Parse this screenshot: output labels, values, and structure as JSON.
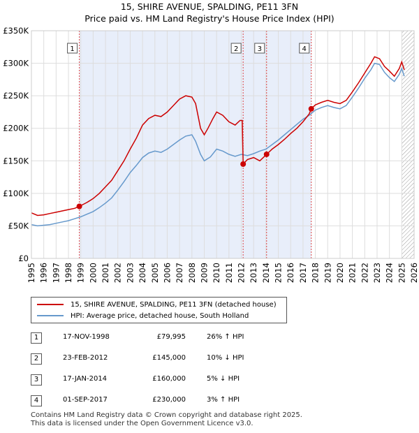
{
  "header": {
    "title": "15, SHIRE AVENUE, SPALDING, PE11 3FN",
    "subtitle": "Price paid vs. HM Land Registry's House Price Index (HPI)"
  },
  "chart_data": {
    "type": "line",
    "ylim": [
      0,
      350000
    ],
    "xlim": [
      1995,
      2026
    ],
    "y_ticks": [
      {
        "value": 0,
        "label": "£0"
      },
      {
        "value": 50000,
        "label": "£50K"
      },
      {
        "value": 100000,
        "label": "£100K"
      },
      {
        "value": 150000,
        "label": "£150K"
      },
      {
        "value": 200000,
        "label": "£200K"
      },
      {
        "value": 250000,
        "label": "£250K"
      },
      {
        "value": 300000,
        "label": "£300K"
      },
      {
        "value": 350000,
        "label": "£350K"
      }
    ],
    "x_ticks": [
      "1995",
      "1996",
      "1997",
      "1998",
      "1999",
      "2000",
      "2001",
      "2002",
      "2003",
      "2004",
      "2005",
      "2006",
      "2007",
      "2008",
      "2009",
      "2010",
      "2011",
      "2012",
      "2013",
      "2014",
      "2015",
      "2016",
      "2017",
      "2018",
      "2019",
      "2020",
      "2021",
      "2022",
      "2023",
      "2024",
      "2025",
      "2026"
    ],
    "grid": true,
    "shaded_spans": [
      [
        1998.88,
        2017.67
      ]
    ],
    "hatched_from": 2025.0,
    "series": [
      {
        "name": "15, SHIRE AVENUE, SPALDING, PE11 3FN (detached house)",
        "color": "#cc0000",
        "points": [
          [
            1995.0,
            70000
          ],
          [
            1995.5,
            66000
          ],
          [
            1996.0,
            67000
          ],
          [
            1996.5,
            69000
          ],
          [
            1997.0,
            71000
          ],
          [
            1997.5,
            73000
          ],
          [
            1998.0,
            75000
          ],
          [
            1998.5,
            77000
          ],
          [
            1998.88,
            79995
          ],
          [
            1999.5,
            86000
          ],
          [
            2000.0,
            92000
          ],
          [
            2000.5,
            100000
          ],
          [
            2001.0,
            110000
          ],
          [
            2001.5,
            120000
          ],
          [
            2002.0,
            135000
          ],
          [
            2002.5,
            150000
          ],
          [
            2003.0,
            168000
          ],
          [
            2003.5,
            185000
          ],
          [
            2004.0,
            205000
          ],
          [
            2004.5,
            215000
          ],
          [
            2005.0,
            220000
          ],
          [
            2005.5,
            218000
          ],
          [
            2006.0,
            225000
          ],
          [
            2006.5,
            235000
          ],
          [
            2007.0,
            245000
          ],
          [
            2007.5,
            250000
          ],
          [
            2008.0,
            248000
          ],
          [
            2008.3,
            238000
          ],
          [
            2008.7,
            200000
          ],
          [
            2009.0,
            190000
          ],
          [
            2009.3,
            200000
          ],
          [
            2009.7,
            215000
          ],
          [
            2010.0,
            225000
          ],
          [
            2010.5,
            220000
          ],
          [
            2011.0,
            210000
          ],
          [
            2011.5,
            205000
          ],
          [
            2011.9,
            212000
          ],
          [
            2012.08,
            212000
          ],
          [
            2012.15,
            145000
          ],
          [
            2012.5,
            152000
          ],
          [
            2013.0,
            155000
          ],
          [
            2013.5,
            150000
          ],
          [
            2014.05,
            160000
          ],
          [
            2014.5,
            168000
          ],
          [
            2015.0,
            175000
          ],
          [
            2015.5,
            183000
          ],
          [
            2016.0,
            192000
          ],
          [
            2016.5,
            200000
          ],
          [
            2017.0,
            210000
          ],
          [
            2017.5,
            222000
          ],
          [
            2017.67,
            230000
          ],
          [
            2018.0,
            236000
          ],
          [
            2018.5,
            240000
          ],
          [
            2019.0,
            243000
          ],
          [
            2019.5,
            240000
          ],
          [
            2020.0,
            238000
          ],
          [
            2020.5,
            243000
          ],
          [
            2021.0,
            256000
          ],
          [
            2021.5,
            270000
          ],
          [
            2022.0,
            285000
          ],
          [
            2022.5,
            300000
          ],
          [
            2022.8,
            310000
          ],
          [
            2023.2,
            307000
          ],
          [
            2023.6,
            295000
          ],
          [
            2024.0,
            288000
          ],
          [
            2024.4,
            280000
          ],
          [
            2024.8,
            292000
          ],
          [
            2025.0,
            302000
          ],
          [
            2025.2,
            290000
          ]
        ]
      },
      {
        "name": "HPI: Average price, detached house, South Holland",
        "color": "#6699cc",
        "points": [
          [
            1995.0,
            52000
          ],
          [
            1995.5,
            50000
          ],
          [
            1996.0,
            51000
          ],
          [
            1996.5,
            52000
          ],
          [
            1997.0,
            54000
          ],
          [
            1997.5,
            56000
          ],
          [
            1998.0,
            58000
          ],
          [
            1998.5,
            61000
          ],
          [
            1999.0,
            64000
          ],
          [
            1999.5,
            68000
          ],
          [
            2000.0,
            72000
          ],
          [
            2000.5,
            78000
          ],
          [
            2001.0,
            85000
          ],
          [
            2001.5,
            93000
          ],
          [
            2002.0,
            105000
          ],
          [
            2002.5,
            118000
          ],
          [
            2003.0,
            132000
          ],
          [
            2003.5,
            143000
          ],
          [
            2004.0,
            155000
          ],
          [
            2004.5,
            162000
          ],
          [
            2005.0,
            165000
          ],
          [
            2005.5,
            163000
          ],
          [
            2006.0,
            168000
          ],
          [
            2006.5,
            175000
          ],
          [
            2007.0,
            182000
          ],
          [
            2007.5,
            188000
          ],
          [
            2008.0,
            190000
          ],
          [
            2008.3,
            180000
          ],
          [
            2008.7,
            160000
          ],
          [
            2009.0,
            150000
          ],
          [
            2009.5,
            156000
          ],
          [
            2010.0,
            168000
          ],
          [
            2010.5,
            165000
          ],
          [
            2011.0,
            160000
          ],
          [
            2011.5,
            157000
          ],
          [
            2012.0,
            160000
          ],
          [
            2012.5,
            158000
          ],
          [
            2013.0,
            161000
          ],
          [
            2013.5,
            165000
          ],
          [
            2014.0,
            168000
          ],
          [
            2014.5,
            175000
          ],
          [
            2015.0,
            182000
          ],
          [
            2015.5,
            190000
          ],
          [
            2016.0,
            198000
          ],
          [
            2016.5,
            206000
          ],
          [
            2017.0,
            214000
          ],
          [
            2017.5,
            220000
          ],
          [
            2018.0,
            228000
          ],
          [
            2018.5,
            232000
          ],
          [
            2019.0,
            235000
          ],
          [
            2019.5,
            232000
          ],
          [
            2020.0,
            230000
          ],
          [
            2020.5,
            235000
          ],
          [
            2021.0,
            248000
          ],
          [
            2021.5,
            262000
          ],
          [
            2022.0,
            277000
          ],
          [
            2022.5,
            290000
          ],
          [
            2022.8,
            300000
          ],
          [
            2023.2,
            298000
          ],
          [
            2023.6,
            286000
          ],
          [
            2024.0,
            278000
          ],
          [
            2024.4,
            272000
          ],
          [
            2024.8,
            283000
          ],
          [
            2025.0,
            292000
          ],
          [
            2025.2,
            280000
          ]
        ]
      }
    ],
    "markers": [
      {
        "label": "1",
        "x": 1998.88,
        "y": 79995
      },
      {
        "label": "2",
        "x": 2012.15,
        "y": 145000
      },
      {
        "label": "3",
        "x": 2014.05,
        "y": 160000
      },
      {
        "label": "4",
        "x": 2017.67,
        "y": 230000
      }
    ]
  },
  "legend": {
    "items": [
      {
        "label": "15, SHIRE AVENUE, SPALDING, PE11 3FN (detached house)",
        "color": "#cc0000"
      },
      {
        "label": "HPI: Average price, detached house, South Holland",
        "color": "#6699cc"
      }
    ]
  },
  "transactions": [
    {
      "num": "1",
      "date": "17-NOV-1998",
      "price": "£79,995",
      "hpi": "26% ↑ HPI"
    },
    {
      "num": "2",
      "date": "23-FEB-2012",
      "price": "£145,000",
      "hpi": "10% ↓ HPI"
    },
    {
      "num": "3",
      "date": "17-JAN-2014",
      "price": "£160,000",
      "hpi": "5% ↓ HPI"
    },
    {
      "num": "4",
      "date": "01-SEP-2017",
      "price": "£230,000",
      "hpi": "3% ↑ HPI"
    }
  ],
  "footer": {
    "line1": "Contains HM Land Registry data © Crown copyright and database right 2025.",
    "line2": "This data is licensed under the Open Government Licence v3.0."
  }
}
